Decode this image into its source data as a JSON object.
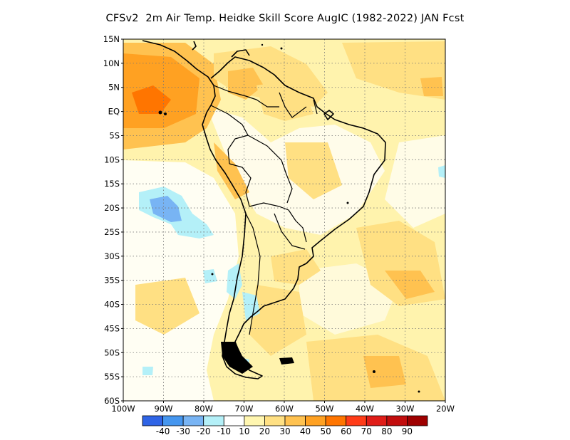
{
  "title": "CFSv2  2m Air Temp. Heidke Skill Score AugIC (1982-2022) JAN Fcst",
  "map": {
    "lon_range": [
      -100,
      -20
    ],
    "lat_range": [
      -60,
      15
    ],
    "grid": true,
    "lat_ticks": [
      "15N",
      "10N",
      "5N",
      "EQ",
      "5S",
      "10S",
      "15S",
      "20S",
      "25S",
      "30S",
      "35S",
      "40S",
      "45S",
      "50S",
      "55S",
      "60S"
    ],
    "lon_ticks": [
      "100W",
      "90W",
      "80W",
      "70W",
      "60W",
      "50W",
      "40W",
      "30W",
      "20W"
    ]
  },
  "colorbar": {
    "colors": [
      "#2f64e6",
      "#4596ef",
      "#78b4f4",
      "#b4f0f8",
      "#ffffff",
      "#fff6b0",
      "#ffe083",
      "#ffc250",
      "#ffa122",
      "#ff7500",
      "#ff3c18",
      "#e01d18",
      "#c20d0d",
      "#9e0000"
    ],
    "labels": [
      "-40",
      "-30",
      "-20",
      "-10",
      "10",
      "20",
      "30",
      "40",
      "50",
      "60",
      "70",
      "80",
      "90"
    ]
  }
}
